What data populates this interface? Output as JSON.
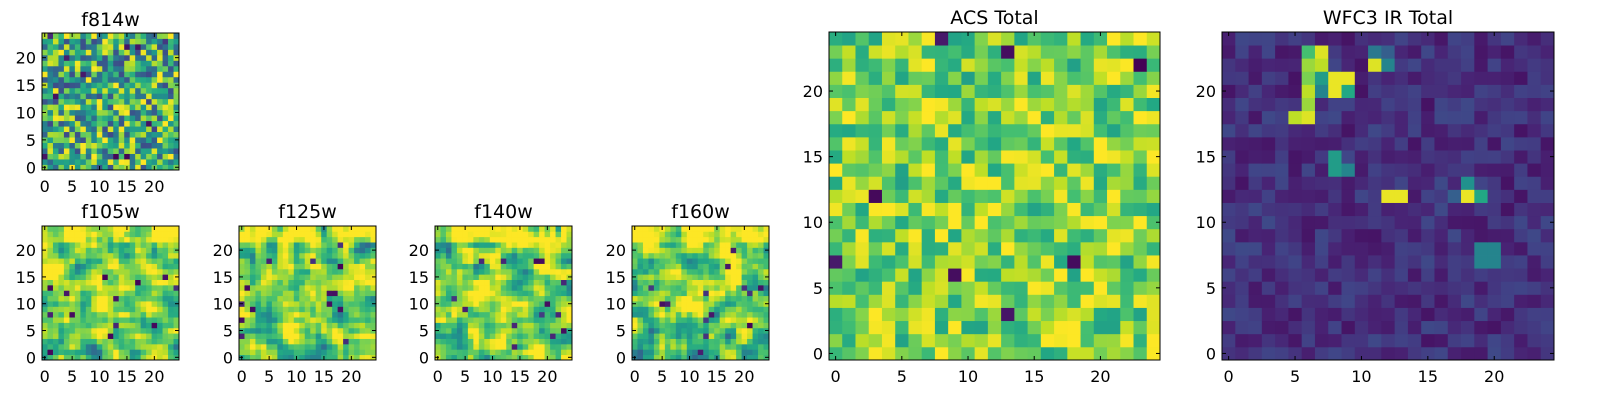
{
  "chart_data": [
    {
      "type": "heatmap",
      "id": "f814w",
      "title": "f814w",
      "colormap": "viridis",
      "grid": [
        25,
        25
      ],
      "xlim": [
        0,
        24
      ],
      "ylim": [
        0,
        24
      ],
      "xticks": [
        0,
        5,
        10,
        15,
        20
      ],
      "yticks": [
        0,
        5,
        10,
        15,
        20
      ],
      "value_range": [
        0,
        1
      ],
      "seed": 11,
      "profile": "noise"
    },
    {
      "type": "heatmap",
      "id": "f105w",
      "title": "f105w",
      "colormap": "viridis",
      "grid": [
        25,
        25
      ],
      "xlim": [
        0,
        24
      ],
      "ylim": [
        0,
        24
      ],
      "xticks": [
        0,
        5,
        10,
        15,
        20
      ],
      "yticks": [
        0,
        5,
        10,
        15,
        20
      ],
      "value_range": [
        0,
        1
      ],
      "seed": 23,
      "profile": "smooth"
    },
    {
      "type": "heatmap",
      "id": "f125w",
      "title": "f125w",
      "colormap": "viridis",
      "grid": [
        25,
        25
      ],
      "xlim": [
        0,
        24
      ],
      "ylim": [
        0,
        24
      ],
      "xticks": [
        0,
        5,
        10,
        15,
        20
      ],
      "yticks": [
        0,
        5,
        10,
        15,
        20
      ],
      "value_range": [
        0,
        1
      ],
      "seed": 37,
      "profile": "smooth"
    },
    {
      "type": "heatmap",
      "id": "f140w",
      "title": "f140w",
      "colormap": "viridis",
      "grid": [
        25,
        25
      ],
      "xlim": [
        0,
        24
      ],
      "ylim": [
        0,
        24
      ],
      "xticks": [
        0,
        5,
        10,
        15,
        20
      ],
      "yticks": [
        0,
        5,
        10,
        15,
        20
      ],
      "value_range": [
        0,
        1
      ],
      "seed": 41,
      "profile": "smooth"
    },
    {
      "type": "heatmap",
      "id": "f160w",
      "title": "f160w",
      "colormap": "viridis",
      "grid": [
        25,
        25
      ],
      "xlim": [
        0,
        24
      ],
      "ylim": [
        0,
        24
      ],
      "xticks": [
        0,
        5,
        10,
        15,
        20
      ],
      "yticks": [
        0,
        5,
        10,
        15,
        20
      ],
      "value_range": [
        0,
        1
      ],
      "seed": 53,
      "profile": "smooth"
    },
    {
      "type": "heatmap",
      "id": "acs_total",
      "title": "ACS Total",
      "colormap": "viridis",
      "grid": [
        25,
        25
      ],
      "xlim": [
        0,
        24
      ],
      "ylim": [
        0,
        24
      ],
      "xticks": [
        0,
        5,
        10,
        15,
        20
      ],
      "yticks": [
        0,
        5,
        10,
        15,
        20
      ],
      "value_range": [
        0,
        1
      ],
      "seed": 67,
      "profile": "bright"
    },
    {
      "type": "heatmap",
      "id": "wfc3_ir_total",
      "title": "WFC3 IR Total",
      "colormap": "viridis",
      "grid": [
        25,
        25
      ],
      "xlim": [
        0,
        24
      ],
      "ylim": [
        0,
        24
      ],
      "xticks": [
        0,
        5,
        10,
        15,
        20
      ],
      "yticks": [
        0,
        5,
        10,
        15,
        20
      ],
      "value_range": [
        0,
        1
      ],
      "seed": 79,
      "profile": "dark",
      "bright_pixels": [
        {
          "x": 6,
          "y": 23,
          "v": 0.7
        },
        {
          "x": 7,
          "y": 23,
          "v": 0.95
        },
        {
          "x": 11,
          "y": 23,
          "v": 0.4
        },
        {
          "x": 12,
          "y": 23,
          "v": 0.3
        },
        {
          "x": 6,
          "y": 22,
          "v": 0.85
        },
        {
          "x": 7,
          "y": 22,
          "v": 0.9
        },
        {
          "x": 11,
          "y": 22,
          "v": 0.95
        },
        {
          "x": 12,
          "y": 22,
          "v": 0.45
        },
        {
          "x": 6,
          "y": 21,
          "v": 0.8
        },
        {
          "x": 7,
          "y": 21,
          "v": 0.55
        },
        {
          "x": 8,
          "y": 21,
          "v": 0.97
        },
        {
          "x": 9,
          "y": 21,
          "v": 0.97
        },
        {
          "x": 6,
          "y": 20,
          "v": 0.9
        },
        {
          "x": 7,
          "y": 20,
          "v": 0.45
        },
        {
          "x": 8,
          "y": 20,
          "v": 0.97
        },
        {
          "x": 9,
          "y": 20,
          "v": 0.6
        },
        {
          "x": 6,
          "y": 19,
          "v": 0.85
        },
        {
          "x": 5,
          "y": 18,
          "v": 0.9
        },
        {
          "x": 6,
          "y": 18,
          "v": 0.95
        },
        {
          "x": 8,
          "y": 15,
          "v": 0.55
        },
        {
          "x": 8,
          "y": 14,
          "v": 0.55
        },
        {
          "x": 9,
          "y": 14,
          "v": 0.45
        },
        {
          "x": 12,
          "y": 12,
          "v": 0.97
        },
        {
          "x": 13,
          "y": 12,
          "v": 0.97
        },
        {
          "x": 18,
          "y": 13,
          "v": 0.5
        },
        {
          "x": 18,
          "y": 12,
          "v": 0.97
        },
        {
          "x": 19,
          "y": 12,
          "v": 0.6
        },
        {
          "x": 17,
          "y": 12,
          "v": 0.3
        },
        {
          "x": 19,
          "y": 8,
          "v": 0.45
        },
        {
          "x": 20,
          "y": 8,
          "v": 0.45
        },
        {
          "x": 19,
          "y": 7,
          "v": 0.45
        },
        {
          "x": 20,
          "y": 7,
          "v": 0.45
        }
      ]
    }
  ]
}
